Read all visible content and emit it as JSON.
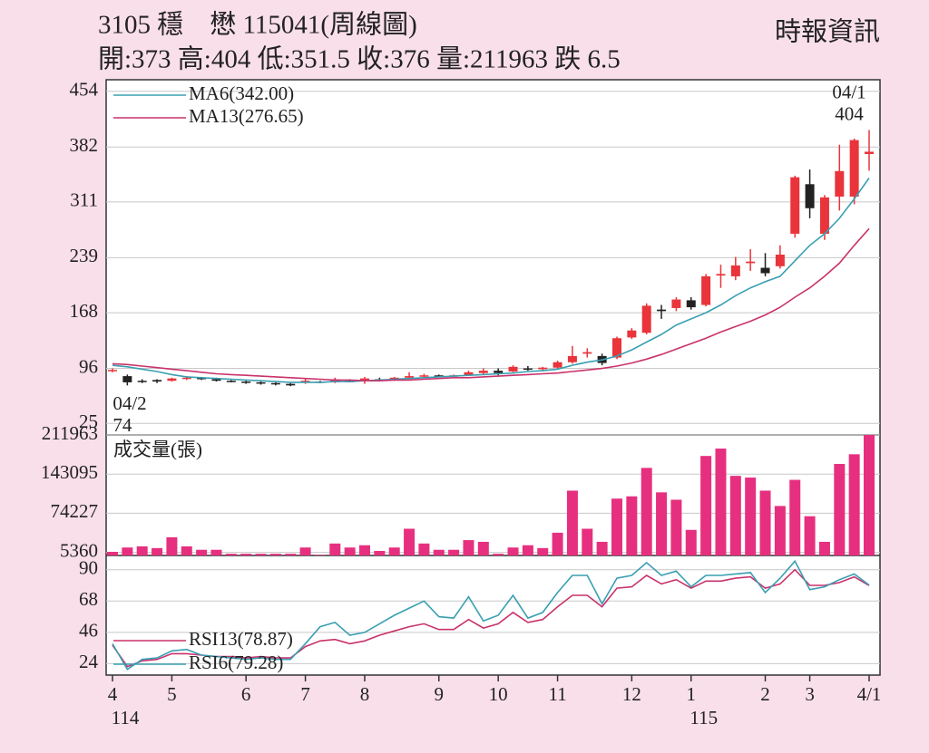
{
  "header": {
    "title": "3105 穩　懋 115041(周線圖)",
    "source": "時報資訊",
    "info": "開:373 高:404 低:351.5 收:376 量:211963 跌 6.5"
  },
  "chart_data": [
    {
      "type": "candlestick",
      "ylim": [
        10,
        469
      ],
      "yticks": [
        25,
        96,
        168,
        239,
        311,
        382,
        454
      ],
      "grid": true,
      "up_color": "#e8343a",
      "down_color": "#222222",
      "open": [
        93,
        86,
        80,
        81,
        80,
        83,
        84,
        82,
        80,
        79,
        78,
        77,
        76,
        78,
        79,
        78,
        80,
        81,
        82,
        82,
        84,
        86,
        87,
        86,
        87,
        90,
        93,
        92,
        96,
        95,
        97,
        104,
        115,
        112,
        110,
        136,
        142,
        172,
        174,
        184,
        178,
        216,
        215,
        232,
        226,
        228,
        270,
        334,
        270,
        318,
        318,
        373
      ],
      "high": [
        96,
        88,
        82,
        82,
        84,
        86,
        85,
        84,
        81,
        80,
        79,
        78,
        77,
        82,
        80,
        84,
        82,
        85,
        84,
        85,
        91,
        89,
        88,
        88,
        93,
        96,
        96,
        100,
        99,
        98,
        106,
        125,
        122,
        115,
        137,
        148,
        180,
        178,
        188,
        188,
        218,
        230,
        240,
        250,
        245,
        255,
        345,
        353,
        320,
        385,
        393,
        404
      ],
      "low": [
        91,
        74,
        77,
        77,
        79,
        81,
        81,
        79,
        78,
        76,
        75,
        74,
        73,
        76,
        77,
        77,
        78,
        76,
        79,
        80,
        83,
        84,
        85,
        84,
        86,
        88,
        87,
        91,
        93,
        92,
        96,
        102,
        110,
        100,
        108,
        134,
        140,
        160,
        170,
        172,
        176,
        200,
        210,
        222,
        215,
        225,
        265,
        290,
        262,
        300,
        308,
        351.5
      ],
      "close": [
        94,
        78,
        80,
        79,
        83,
        84,
        82,
        80,
        79,
        78,
        77,
        76,
        74,
        80,
        78,
        82,
        79,
        83,
        81,
        84,
        86,
        87,
        86,
        87,
        91,
        93,
        90,
        98,
        95,
        97,
        104,
        112,
        117,
        103,
        135,
        145,
        177,
        170,
        185,
        175,
        215,
        218,
        229,
        234,
        219,
        243,
        343,
        303,
        317,
        351,
        391,
        376
      ],
      "series": [
        {
          "name": "MA6(342.00)",
          "color": "#3a9fb2",
          "values": [
            100,
            98,
            95,
            92,
            88,
            85,
            84,
            83,
            82,
            81,
            80,
            79,
            78,
            78,
            78,
            79,
            79,
            80,
            81,
            82,
            83,
            84,
            85,
            86,
            87,
            88,
            89,
            90,
            92,
            93,
            95,
            100,
            104,
            107,
            112,
            120,
            130,
            140,
            152,
            160,
            168,
            178,
            190,
            200,
            208,
            215,
            235,
            255,
            270,
            290,
            315,
            342
          ]
        },
        {
          "name": "MA13(276.65)",
          "color": "#c9326b",
          "values": [
            102,
            101,
            99,
            97,
            95,
            93,
            91,
            89,
            88,
            87,
            86,
            85,
            84,
            83,
            82,
            81,
            81,
            80,
            80,
            81,
            81,
            82,
            83,
            84,
            84,
            85,
            86,
            87,
            88,
            89,
            90,
            92,
            94,
            96,
            99,
            103,
            108,
            114,
            121,
            128,
            135,
            143,
            150,
            157,
            165,
            175,
            188,
            200,
            215,
            232,
            255,
            276.65
          ]
        }
      ],
      "annotations": [
        {
          "date": "04/1",
          "value": 404,
          "kind": "high"
        },
        {
          "date": "04/2",
          "value": 74,
          "kind": "low"
        }
      ]
    },
    {
      "type": "bar",
      "title": "成交量(張)",
      "color": "#e6307f",
      "ylim": [
        0,
        211963
      ],
      "yticks": [
        5360,
        74227,
        143095,
        211963
      ],
      "grid": true,
      "values": [
        6400,
        14000,
        16000,
        13000,
        32000,
        16000,
        10000,
        10000,
        3000,
        3000,
        3000,
        3000,
        3000,
        14000,
        1000,
        21000,
        14000,
        18000,
        8000,
        14000,
        47000,
        21000,
        10000,
        10000,
        27000,
        24000,
        3000,
        14000,
        18000,
        13000,
        40000,
        114000,
        47000,
        24000,
        100000,
        104000,
        154000,
        111000,
        98000,
        45000,
        175000,
        188000,
        140000,
        137000,
        114000,
        87000,
        133000,
        69000,
        24000,
        161000,
        178000,
        211963
      ]
    },
    {
      "type": "line",
      "ylim": [
        16,
        100
      ],
      "yticks": [
        24,
        46,
        68,
        90
      ],
      "grid": true,
      "categories": [
        "4",
        null,
        null,
        null,
        "5",
        null,
        null,
        null,
        null,
        "6",
        null,
        null,
        null,
        "7",
        null,
        null,
        null,
        "8",
        null,
        null,
        null,
        null,
        "9",
        null,
        null,
        null,
        "10",
        null,
        null,
        null,
        "11",
        null,
        null,
        null,
        null,
        "12",
        null,
        null,
        null,
        "1",
        null,
        null,
        null,
        null,
        "2",
        null,
        null,
        "3",
        null,
        null,
        null,
        "4/1"
      ],
      "category_years": [
        "114",
        null,
        null,
        null,
        null,
        null,
        null,
        null,
        null,
        null,
        null,
        null,
        null,
        null,
        null,
        null,
        null,
        null,
        null,
        null,
        null,
        null,
        null,
        null,
        null,
        null,
        null,
        null,
        null,
        null,
        null,
        null,
        null,
        null,
        null,
        null,
        null,
        null,
        null,
        "115",
        null,
        null,
        null,
        null,
        null,
        null,
        null,
        null,
        null,
        null,
        null,
        null
      ],
      "series": [
        {
          "name": "RSI13(78.87)",
          "color": "#c9326b",
          "values": [
            37,
            22,
            26,
            27,
            31,
            31,
            30,
            29,
            29,
            28,
            29,
            28,
            28,
            36,
            40,
            41,
            38,
            40,
            44,
            47,
            50,
            52,
            48,
            48,
            55,
            49,
            52,
            60,
            53,
            55,
            64,
            72,
            72,
            64,
            77,
            78,
            86,
            80,
            83,
            77,
            82,
            82,
            84,
            85,
            77,
            80,
            90,
            79,
            79,
            81,
            85,
            78.87
          ]
        },
        {
          "name": "RSI6(79.28)",
          "color": "#3a9fb2",
          "values": [
            38,
            20,
            27,
            28,
            33,
            34,
            30,
            29,
            28,
            27,
            28,
            27,
            27,
            38,
            50,
            53,
            44,
            46,
            52,
            58,
            63,
            68,
            57,
            56,
            71,
            54,
            58,
            72,
            56,
            60,
            74,
            86,
            86,
            66,
            84,
            86,
            95,
            86,
            89,
            78,
            86,
            86,
            87,
            88,
            74,
            84,
            96,
            76,
            78,
            83,
            87,
            79.28
          ]
        }
      ]
    }
  ]
}
